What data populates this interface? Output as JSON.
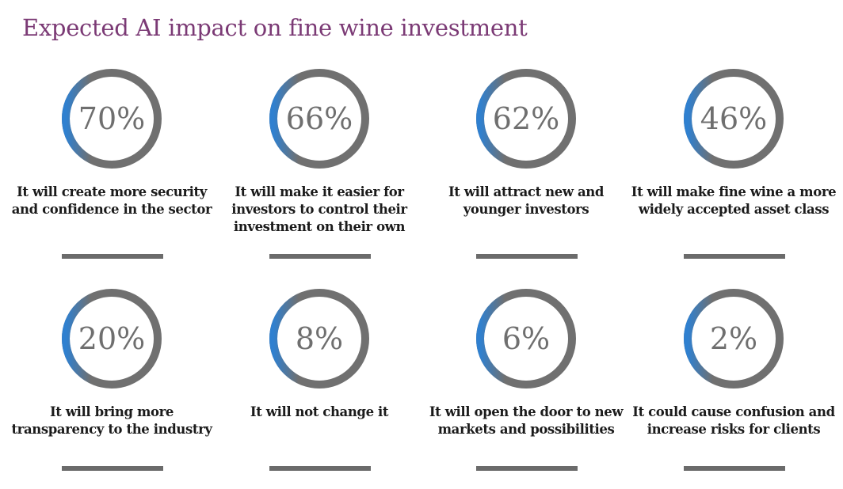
{
  "title": "Expected AI impact on fine wine investment",
  "colors": {
    "ring_gray": "#707070",
    "ring_blue": "#2f80d0",
    "title": "#7b3a75"
  },
  "chart_data": {
    "type": "donut-grid",
    "title": "Expected AI impact on fine wine investment",
    "items": [
      {
        "value": 70,
        "display": "70%",
        "label": "It will create more security and confidence in the sector"
      },
      {
        "value": 66,
        "display": "66%",
        "label": "It will make it easier for investors to control their investment on their own"
      },
      {
        "value": 62,
        "display": "62%",
        "label": "It will attract new and younger investors"
      },
      {
        "value": 46,
        "display": "46%",
        "label": "It will make fine wine a more widely accepted asset class"
      },
      {
        "value": 20,
        "display": "20%",
        "label": "It will bring more transparency to the industry"
      },
      {
        "value": 8,
        "display": "8%",
        "label": "It will not change it"
      },
      {
        "value": 6,
        "display": "6%",
        "label": "It will open the door to new markets and possibilities"
      },
      {
        "value": 2,
        "display": "2%",
        "label": "It could cause confusion and increase risks for clients"
      }
    ]
  }
}
